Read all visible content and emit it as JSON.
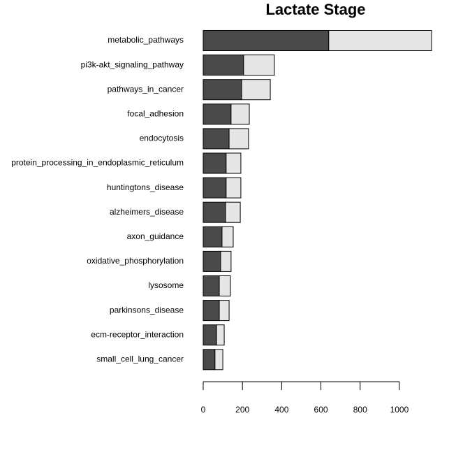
{
  "chart_data": {
    "type": "stacked_barh",
    "title": "Lactate Stage",
    "categories": [
      "metabolic_pathways",
      "pi3k-akt_signaling_pathway",
      "pathways_in_cancer",
      "focal_adhesion",
      "endocytosis",
      "protein_processing_in_endoplasmic_reticulum",
      "huntingtons_disease",
      "alzheimers_disease",
      "axon_guidance",
      "oxidative_phosphorylation",
      "lysosome",
      "parkinsons_disease",
      "ecm-receptor_interaction",
      "small_cell_lung_cancer"
    ],
    "series": [
      {
        "color": "#4a4a4a",
        "values": [
          640,
          206,
          196,
          142,
          132,
          117,
          117,
          114,
          96,
          89,
          82,
          82,
          68,
          60
        ]
      },
      {
        "color": "#e6e6e6",
        "values": [
          524,
          157,
          146,
          93,
          99,
          75,
          75,
          75,
          57,
          53,
          57,
          50,
          39,
          40
        ]
      }
    ],
    "xlim": [
      0,
      1164
    ],
    "xticks": [
      0,
      200,
      400,
      600,
      800,
      1000
    ]
  }
}
